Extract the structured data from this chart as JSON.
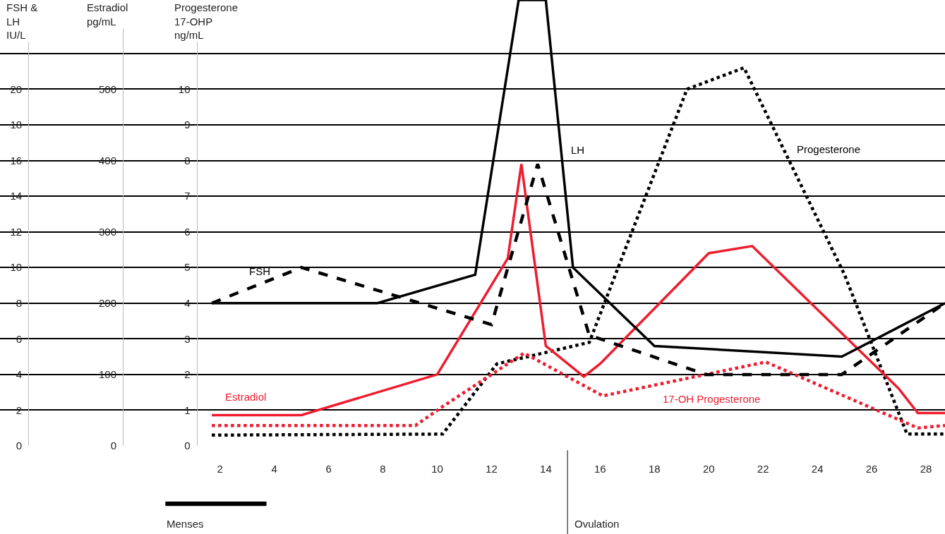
{
  "chart_data": {
    "type": "line",
    "ylabel": "Progesterone\n17-OHP\nng/mL",
    "y2label": "Estradiol\npg/mL",
    "y3label": "FSH &\nLH\nIU/L",
    "xlim": [
      -6.1,
      28.7
    ],
    "xticks": [
      2,
      4,
      6,
      8,
      10,
      12,
      14,
      16,
      18,
      20,
      22,
      24,
      26,
      28
    ],
    "ylim": [
      0,
      12.5
    ],
    "yticks": [
      0,
      1,
      2,
      3,
      4,
      5,
      6,
      7,
      8,
      9,
      10
    ],
    "y2lim": [
      0,
      625
    ],
    "y2ticks": [
      0,
      {
        "value": 50,
        "label": null
      },
      100,
      {
        "value": 150,
        "label": null
      },
      200,
      {
        "value": 250,
        "label": null
      },
      300,
      {
        "value": 350,
        "label": null
      },
      400,
      {
        "value": 450,
        "label": null
      },
      500
    ],
    "y3lim": [
      0,
      25
    ],
    "y3ticks": [
      0,
      2,
      4,
      6,
      8,
      10,
      12,
      14,
      16,
      18,
      20,
      {
        "value": 22,
        "label": null
      }
    ],
    "grid": "y",
    "legend": false,
    "marker": "none",
    "series": [
      {
        "name": "LH",
        "color": "#000000",
        "line_style": "solid",
        "axis": "y3",
        "x": [
          1.7,
          7.8,
          11.4,
          13,
          14,
          15,
          18,
          24.9,
          28.7
        ],
        "values": [
          8,
          8,
          9.6,
          25,
          25,
          10,
          5.6,
          5,
          8
        ]
      },
      {
        "name": "FSH",
        "color": "#000000",
        "line_style": "dashed",
        "axis": "y3",
        "x": [
          1.7,
          5,
          12,
          13.7,
          15.6,
          19.9,
          24.9,
          28.7
        ],
        "values": [
          8,
          10,
          6.8,
          15.8,
          6.2,
          4,
          4,
          8
        ]
      },
      {
        "name": "Estradiol",
        "color": "#ee1c2e",
        "line_style": "solid",
        "axis": "y2",
        "x": [
          1.7,
          5,
          10,
          12.6,
          13.1,
          14,
          15.4,
          16,
          20,
          21.6,
          27,
          27.7,
          28.7
        ],
        "values": [
          43,
          43,
          100,
          263,
          395,
          140,
          97,
          115,
          270,
          280,
          80,
          46,
          46
        ]
      },
      {
        "name": "Progesterone",
        "color": "#000000",
        "line_style": "dotted",
        "x": [
          1.7,
          10.2,
          12.2,
          15.6,
          19.2,
          21.3,
          25,
          27.3,
          28.7
        ],
        "values": [
          0.3,
          0.33,
          2.3,
          2.9,
          10,
          10.6,
          4.8,
          0.33,
          0.33
        ]
      },
      {
        "name": "17-OH Progesterone",
        "color": "#ee1c2e",
        "line_style": "dotted",
        "x": [
          1.7,
          9.2,
          10.2,
          13.2,
          16.1,
          22.1,
          27.7,
          28.7
        ],
        "values": [
          0.57,
          0.57,
          1.1,
          2.6,
          1.4,
          2.35,
          0.5,
          0.57
        ]
      }
    ],
    "annotations": [
      "Menses"
    ],
    "ref_lines": [
      {
        "axis": "x",
        "value": 14.8,
        "label": "Ovulation",
        "color": "#555555"
      }
    ]
  }
}
